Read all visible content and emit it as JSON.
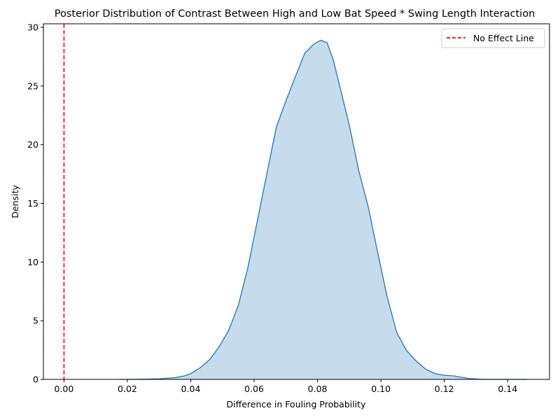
{
  "chart_data": {
    "type": "area",
    "title": "Posterior Distribution of Contrast Between High and Low Bat Speed * Swing Length Interaction",
    "xlabel": "Difference in Fouling Probability",
    "ylabel": "Density",
    "xlim": [
      -0.0065,
      0.1532
    ],
    "ylim": [
      0,
      30.3
    ],
    "xticks": [
      0.0,
      0.02,
      0.04,
      0.06,
      0.08,
      0.1,
      0.12,
      0.14
    ],
    "xtick_labels": [
      "0.00",
      "0.02",
      "0.04",
      "0.06",
      "0.08",
      "0.10",
      "0.12",
      "0.14"
    ],
    "yticks": [
      0,
      5,
      10,
      15,
      20,
      25,
      30
    ],
    "ytick_labels": [
      "0",
      "5",
      "10",
      "15",
      "20",
      "25",
      "30"
    ],
    "grid": false,
    "legend": {
      "placement": "top-right",
      "entries": [
        "No Effect Line"
      ]
    },
    "reference_line": {
      "x": 0.0,
      "label": "No Effect Line",
      "color": "#ff0000",
      "style": "dashed"
    },
    "series": [
      {
        "color": "#1f77b4",
        "fill": "#c6dbec",
        "x": [
          0.0175,
          0.025,
          0.03,
          0.035,
          0.038,
          0.04,
          0.043,
          0.046,
          0.049,
          0.052,
          0.055,
          0.058,
          0.061,
          0.064,
          0.067,
          0.07,
          0.073,
          0.076,
          0.079,
          0.081,
          0.083,
          0.085,
          0.087,
          0.09,
          0.093,
          0.096,
          0.099,
          0.102,
          0.105,
          0.108,
          0.111,
          0.114,
          0.117,
          0.12,
          0.123,
          0.125,
          0.128,
          0.131,
          0.135,
          0.14,
          0.146
        ],
        "values": [
          0.0,
          0.02,
          0.05,
          0.15,
          0.3,
          0.5,
          1.0,
          1.7,
          2.8,
          4.2,
          6.3,
          9.5,
          13.5,
          17.5,
          21.5,
          23.7,
          25.8,
          27.8,
          28.6,
          28.9,
          28.7,
          27.2,
          25.0,
          21.7,
          17.8,
          14.7,
          10.8,
          7.0,
          4.0,
          2.5,
          1.6,
          0.9,
          0.5,
          0.35,
          0.3,
          0.2,
          0.07,
          0.02,
          0.0,
          0.0,
          0.0
        ]
      }
    ]
  }
}
